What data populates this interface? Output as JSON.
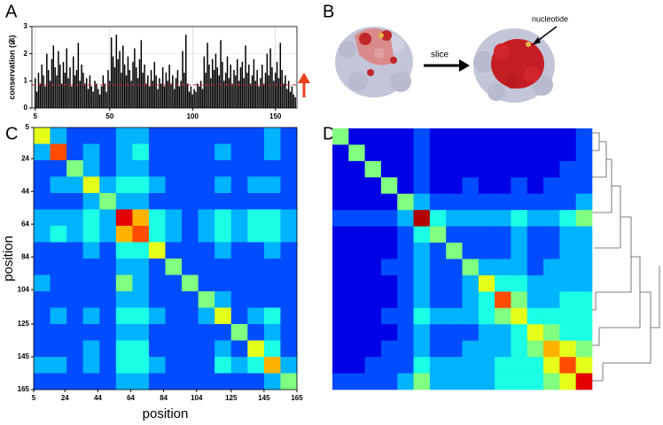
{
  "panel_labels": [
    "A",
    "B",
    "C",
    "D"
  ],
  "annotations": {
    "slice": "slice",
    "nucleotide": "nucleotide"
  },
  "chart_data": [
    {
      "type": "bar",
      "y_label": "conservation (𝒟ᵢ)",
      "color": "#000000",
      "grid": true,
      "reference_line": 0.85,
      "reference_color": "#d62728",
      "xlim": [
        3,
        163
      ],
      "ylim": [
        0,
        3
      ],
      "xticks": [
        5,
        50,
        100,
        150
      ],
      "yticks": [
        0,
        1,
        2,
        3
      ],
      "x": [
        5,
        6,
        7,
        8,
        9,
        10,
        11,
        12,
        13,
        14,
        15,
        16,
        17,
        18,
        19,
        20,
        21,
        22,
        23,
        24,
        25,
        26,
        27,
        28,
        29,
        30,
        31,
        32,
        33,
        34,
        35,
        36,
        37,
        38,
        39,
        40,
        41,
        42,
        43,
        44,
        45,
        46,
        47,
        48,
        49,
        50,
        51,
        52,
        53,
        54,
        55,
        56,
        57,
        58,
        59,
        60,
        61,
        62,
        63,
        64,
        65,
        66,
        67,
        68,
        69,
        70,
        71,
        72,
        73,
        74,
        75,
        76,
        77,
        78,
        79,
        80,
        81,
        82,
        83,
        84,
        85,
        86,
        87,
        88,
        89,
        90,
        91,
        92,
        93,
        94,
        95,
        96,
        97,
        98,
        99,
        100,
        101,
        102,
        103,
        104,
        105,
        106,
        107,
        108,
        109,
        110,
        111,
        112,
        113,
        114,
        115,
        116,
        117,
        118,
        119,
        120,
        121,
        122,
        123,
        124,
        125,
        126,
        127,
        128,
        129,
        130,
        131,
        132,
        133,
        134,
        135,
        136,
        137,
        138,
        139,
        140,
        141,
        142,
        143,
        144,
        145,
        146,
        147,
        148,
        149,
        150,
        151,
        152,
        153,
        154,
        155,
        156,
        157,
        158,
        159,
        160,
        161,
        162
      ],
      "values": [
        1.1,
        0.6,
        1.3,
        0.9,
        1.6,
        1.2,
        0.8,
        2.0,
        1.4,
        1.0,
        1.8,
        2.3,
        1.5,
        1.2,
        2.1,
        1.6,
        0.9,
        1.7,
        1.3,
        2.2,
        1.1,
        1.5,
        0.8,
        1.9,
        1.2,
        1.4,
        2.4,
        1.0,
        1.6,
        1.3,
        0.9,
        1.1,
        0.7,
        1.2,
        0.8,
        0.6,
        1.0,
        0.9,
        0.7,
        0.5,
        0.8,
        1.2,
        0.9,
        0.6,
        1.4,
        1.0,
        2.6,
        1.9,
        1.5,
        2.7,
        1.8,
        2.1,
        1.3,
        2.3,
        1.6,
        1.2,
        1.9,
        1.4,
        1.0,
        1.7,
        2.2,
        1.5,
        1.1,
        1.8,
        2.5,
        1.3,
        1.6,
        0.9,
        1.2,
        0.8,
        1.4,
        1.0,
        1.7,
        1.2,
        0.7,
        1.1,
        0.9,
        1.5,
        0.8,
        1.3,
        1.0,
        1.6,
        0.9,
        1.2,
        0.7,
        1.1,
        1.4,
        0.8,
        1.0,
        2.1,
        1.3,
        2.7,
        0.9,
        0.6,
        0.8,
        0.5,
        0.7,
        0.6,
        0.9,
        0.8,
        1.0,
        0.7,
        1.9,
        1.3,
        2.4,
        1.6,
        1.1,
        1.8,
        1.4,
        2.0,
        1.5,
        1.2,
        2.5,
        1.7,
        1.0,
        1.3,
        1.9,
        1.1,
        1.6,
        0.9,
        1.4,
        1.2,
        1.8,
        1.0,
        1.5,
        1.7,
        1.1,
        2.3,
        1.3,
        1.6,
        0.9,
        1.2,
        1.8,
        1.0,
        1.4,
        0.8,
        1.1,
        1.6,
        0.9,
        1.3,
        2.0,
        1.2,
        2.2,
        1.5,
        1.0,
        1.3,
        1.7,
        1.1,
        2.4,
        1.4,
        0.9,
        1.2,
        0.7,
        1.0,
        0.6,
        0.8,
        0.5,
        0.4
      ]
    },
    {
      "type": "heatmap",
      "x_label": "position",
      "y_label": "position",
      "xlim": [
        5,
        165
      ],
      "ylim": [
        5,
        165
      ],
      "xticks": [
        5,
        24,
        44,
        64,
        84,
        104,
        125,
        145,
        165
      ],
      "yticks": [
        5,
        24,
        44,
        64,
        84,
        104,
        125,
        145,
        165
      ],
      "values": [
        [
          0.6,
          0.3,
          0.2,
          0.2,
          0.2,
          0.3,
          0.3,
          0.2,
          0.2,
          0.2,
          0.2,
          0.2,
          0.2,
          0.2,
          0.3,
          0.2
        ],
        [
          0.3,
          0.8,
          0.2,
          0.3,
          0.2,
          0.3,
          0.4,
          0.2,
          0.2,
          0.2,
          0.2,
          0.3,
          0.2,
          0.2,
          0.3,
          0.2
        ],
        [
          0.2,
          0.2,
          0.5,
          0.3,
          0.2,
          0.3,
          0.3,
          0.2,
          0.2,
          0.2,
          0.2,
          0.2,
          0.2,
          0.2,
          0.2,
          0.2
        ],
        [
          0.2,
          0.3,
          0.3,
          0.6,
          0.3,
          0.4,
          0.4,
          0.3,
          0.2,
          0.2,
          0.2,
          0.3,
          0.2,
          0.3,
          0.3,
          0.2
        ],
        [
          0.2,
          0.2,
          0.2,
          0.3,
          0.5,
          0.3,
          0.3,
          0.2,
          0.2,
          0.2,
          0.2,
          0.2,
          0.2,
          0.2,
          0.2,
          0.2
        ],
        [
          0.3,
          0.3,
          0.3,
          0.4,
          0.3,
          0.9,
          0.7,
          0.4,
          0.3,
          0.2,
          0.3,
          0.4,
          0.3,
          0.4,
          0.4,
          0.3
        ],
        [
          0.3,
          0.4,
          0.3,
          0.4,
          0.3,
          0.7,
          0.8,
          0.4,
          0.3,
          0.2,
          0.3,
          0.4,
          0.3,
          0.4,
          0.4,
          0.3
        ],
        [
          0.2,
          0.2,
          0.2,
          0.3,
          0.2,
          0.4,
          0.4,
          0.6,
          0.2,
          0.2,
          0.2,
          0.3,
          0.2,
          0.2,
          0.3,
          0.2
        ],
        [
          0.2,
          0.2,
          0.2,
          0.2,
          0.2,
          0.3,
          0.3,
          0.2,
          0.5,
          0.2,
          0.2,
          0.2,
          0.2,
          0.2,
          0.2,
          0.2
        ],
        [
          0.3,
          0.2,
          0.2,
          0.2,
          0.2,
          0.5,
          0.3,
          0.2,
          0.2,
          0.5,
          0.2,
          0.2,
          0.2,
          0.2,
          0.2,
          0.2
        ],
        [
          0.2,
          0.2,
          0.2,
          0.2,
          0.2,
          0.3,
          0.3,
          0.2,
          0.2,
          0.2,
          0.5,
          0.3,
          0.2,
          0.2,
          0.2,
          0.2
        ],
        [
          0.2,
          0.3,
          0.2,
          0.3,
          0.2,
          0.4,
          0.4,
          0.3,
          0.2,
          0.2,
          0.3,
          0.6,
          0.2,
          0.3,
          0.4,
          0.2
        ],
        [
          0.2,
          0.2,
          0.2,
          0.2,
          0.2,
          0.3,
          0.3,
          0.2,
          0.2,
          0.2,
          0.2,
          0.2,
          0.5,
          0.2,
          0.3,
          0.2
        ],
        [
          0.2,
          0.2,
          0.2,
          0.3,
          0.2,
          0.4,
          0.4,
          0.2,
          0.2,
          0.2,
          0.2,
          0.3,
          0.2,
          0.6,
          0.4,
          0.2
        ],
        [
          0.3,
          0.3,
          0.2,
          0.3,
          0.2,
          0.4,
          0.4,
          0.3,
          0.2,
          0.2,
          0.2,
          0.4,
          0.3,
          0.4,
          0.7,
          0.3
        ],
        [
          0.2,
          0.2,
          0.2,
          0.2,
          0.2,
          0.3,
          0.3,
          0.2,
          0.2,
          0.2,
          0.2,
          0.2,
          0.2,
          0.2,
          0.3,
          0.5
        ]
      ]
    },
    {
      "type": "heatmap",
      "values": [
        [
          0.5,
          0.1,
          0.1,
          0.1,
          0.1,
          0.2,
          0.1,
          0.1,
          0.1,
          0.1,
          0.1,
          0.1,
          0.1,
          0.1,
          0.1,
          0.2
        ],
        [
          0.1,
          0.5,
          0.1,
          0.1,
          0.1,
          0.2,
          0.1,
          0.1,
          0.1,
          0.1,
          0.1,
          0.1,
          0.1,
          0.1,
          0.1,
          0.2
        ],
        [
          0.1,
          0.1,
          0.5,
          0.1,
          0.1,
          0.2,
          0.1,
          0.1,
          0.1,
          0.1,
          0.1,
          0.1,
          0.1,
          0.1,
          0.2,
          0.2
        ],
        [
          0.1,
          0.1,
          0.1,
          0.5,
          0.1,
          0.2,
          0.1,
          0.1,
          0.2,
          0.1,
          0.1,
          0.2,
          0.1,
          0.2,
          0.2,
          0.2
        ],
        [
          0.1,
          0.1,
          0.1,
          0.1,
          0.5,
          0.3,
          0.2,
          0.2,
          0.2,
          0.2,
          0.2,
          0.2,
          0.2,
          0.2,
          0.2,
          0.3
        ],
        [
          0.2,
          0.2,
          0.2,
          0.2,
          0.3,
          0.95,
          0.4,
          0.3,
          0.3,
          0.3,
          0.3,
          0.4,
          0.3,
          0.3,
          0.4,
          0.5
        ],
        [
          0.1,
          0.1,
          0.1,
          0.1,
          0.2,
          0.4,
          0.5,
          0.2,
          0.2,
          0.2,
          0.2,
          0.3,
          0.2,
          0.2,
          0.3,
          0.3
        ],
        [
          0.1,
          0.1,
          0.1,
          0.1,
          0.2,
          0.3,
          0.2,
          0.5,
          0.2,
          0.2,
          0.2,
          0.3,
          0.2,
          0.2,
          0.3,
          0.3
        ],
        [
          0.1,
          0.1,
          0.1,
          0.2,
          0.2,
          0.3,
          0.2,
          0.2,
          0.5,
          0.3,
          0.3,
          0.3,
          0.2,
          0.3,
          0.3,
          0.3
        ],
        [
          0.1,
          0.1,
          0.1,
          0.1,
          0.2,
          0.3,
          0.2,
          0.2,
          0.3,
          0.6,
          0.4,
          0.4,
          0.3,
          0.3,
          0.3,
          0.3
        ],
        [
          0.1,
          0.1,
          0.1,
          0.1,
          0.2,
          0.3,
          0.2,
          0.2,
          0.3,
          0.4,
          0.8,
          0.5,
          0.3,
          0.3,
          0.4,
          0.4
        ],
        [
          0.1,
          0.1,
          0.1,
          0.2,
          0.2,
          0.4,
          0.3,
          0.3,
          0.3,
          0.4,
          0.5,
          0.6,
          0.4,
          0.4,
          0.4,
          0.4
        ],
        [
          0.1,
          0.1,
          0.1,
          0.1,
          0.2,
          0.3,
          0.2,
          0.2,
          0.2,
          0.3,
          0.3,
          0.4,
          0.6,
          0.5,
          0.4,
          0.4
        ],
        [
          0.1,
          0.1,
          0.1,
          0.2,
          0.2,
          0.3,
          0.2,
          0.2,
          0.3,
          0.3,
          0.3,
          0.4,
          0.5,
          0.7,
          0.6,
          0.5
        ],
        [
          0.1,
          0.1,
          0.2,
          0.2,
          0.2,
          0.4,
          0.3,
          0.3,
          0.3,
          0.3,
          0.4,
          0.4,
          0.4,
          0.6,
          0.8,
          0.6
        ],
        [
          0.2,
          0.2,
          0.2,
          0.2,
          0.3,
          0.5,
          0.3,
          0.3,
          0.3,
          0.3,
          0.4,
          0.4,
          0.4,
          0.5,
          0.6,
          0.9
        ]
      ]
    }
  ]
}
